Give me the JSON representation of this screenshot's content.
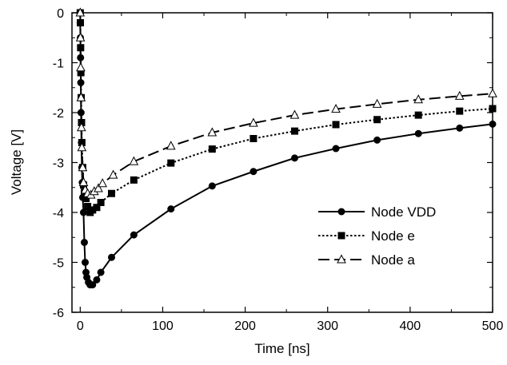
{
  "chart_data": {
    "type": "line",
    "title": "",
    "xlabel": "Time [ns]",
    "ylabel": "Voltage [V]",
    "xlim": [
      -10,
      500
    ],
    "ylim": [
      -6,
      0
    ],
    "xticks": [
      0,
      100,
      200,
      300,
      400,
      500
    ],
    "yticks": [
      0,
      -1,
      -2,
      -3,
      -4,
      -5,
      -6
    ],
    "grid": false,
    "legend_position": "right-middle",
    "series": [
      {
        "name": "Node VDD",
        "marker": "filled-circle",
        "line_style": "solid",
        "color": "#000000",
        "x": [
          0,
          0.2,
          0.4,
          0.7,
          1,
          1.5,
          2,
          2.5,
          3,
          4,
          5,
          6,
          7,
          8,
          10,
          12,
          15,
          20,
          25,
          38,
          65,
          110,
          160,
          210,
          260,
          310,
          360,
          410,
          460,
          500
        ],
        "y": [
          -0.2,
          -0.5,
          -0.9,
          -1.4,
          -2.0,
          -2.6,
          -3.1,
          -3.4,
          -3.7,
          -4.0,
          -4.6,
          -5.0,
          -5.2,
          -5.3,
          -5.4,
          -5.45,
          -5.45,
          -5.35,
          -5.2,
          -4.9,
          -4.45,
          -3.93,
          -3.47,
          -3.18,
          -2.91,
          -2.72,
          -2.55,
          -2.42,
          -2.31,
          -2.23
        ]
      },
      {
        "name": "Node e",
        "marker": "filled-square",
        "line_style": "dotted",
        "color": "#000000",
        "x": [
          0,
          0.2,
          0.5,
          0.8,
          1.2,
          1.6,
          2,
          3,
          4,
          5,
          7,
          9,
          12,
          15,
          20,
          25,
          38,
          65,
          110,
          160,
          210,
          260,
          310,
          360,
          410,
          460,
          500
        ],
        "y": [
          0,
          -0.2,
          -0.7,
          -1.2,
          -1.7,
          -2.2,
          -2.6,
          -3.1,
          -3.45,
          -3.6,
          -3.72,
          -3.88,
          -4.0,
          -3.95,
          -3.9,
          -3.8,
          -3.62,
          -3.35,
          -3.01,
          -2.73,
          -2.52,
          -2.37,
          -2.24,
          -2.14,
          -2.05,
          -1.97,
          -1.92
        ]
      },
      {
        "name": "Node a",
        "marker": "open-triangle",
        "line_style": "dashed",
        "color": "#000000",
        "x": [
          0,
          0.3,
          0.6,
          1,
          1.5,
          2,
          3,
          4,
          6,
          9,
          13,
          17,
          22,
          27,
          40,
          65,
          110,
          160,
          210,
          260,
          310,
          360,
          410,
          460,
          500
        ],
        "y": [
          0,
          -0.5,
          -1.1,
          -1.7,
          -2.3,
          -2.7,
          -3.1,
          -3.4,
          -3.55,
          -3.62,
          -3.65,
          -3.58,
          -3.52,
          -3.42,
          -3.25,
          -2.98,
          -2.67,
          -2.4,
          -2.21,
          -2.05,
          -1.93,
          -1.83,
          -1.74,
          -1.67,
          -1.62
        ]
      }
    ]
  }
}
